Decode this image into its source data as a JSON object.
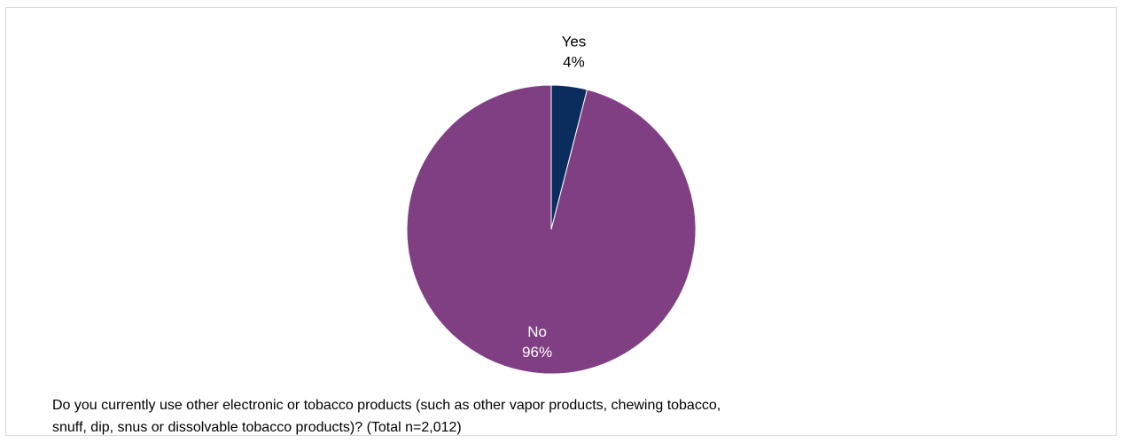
{
  "chart_data": {
    "type": "pie",
    "title": "",
    "categories": [
      "Yes",
      "No"
    ],
    "values": [
      4,
      96
    ],
    "value_labels": [
      "4%",
      "96%"
    ],
    "colors": [
      "#0b2d5e",
      "#813f83"
    ],
    "label_colors": [
      "#000000",
      "#ffffff"
    ],
    "legend": "none"
  },
  "caption": {
    "line1": "Do you currently use other electronic or tobacco products (such as other vapor products, chewing tobacco,",
    "line2": "snuff, dip, snus or dissolvable tobacco products)? (Total n=2,012)"
  }
}
